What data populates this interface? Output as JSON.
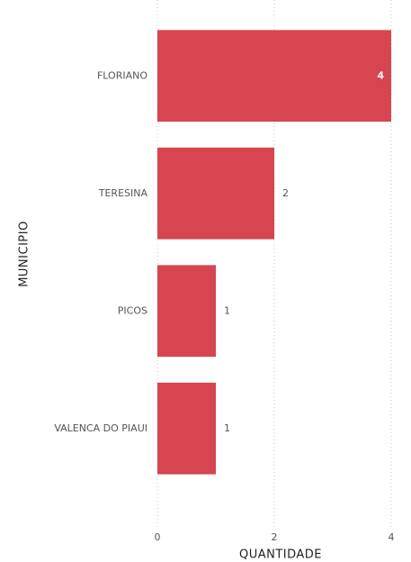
{
  "chart_data": {
    "type": "bar",
    "orientation": "horizontal",
    "categories": [
      "FLORIANO",
      "TERESINA",
      "PICOS",
      "VALENCA DO PIAUI"
    ],
    "values": [
      4,
      2,
      1,
      1
    ],
    "color": "#d64550",
    "x_label": "QUANTIDADE",
    "y_label": "MUNICIPIO",
    "xlim": [
      0,
      4
    ],
    "xticks": [
      0,
      2,
      4
    ],
    "grid": true
  }
}
